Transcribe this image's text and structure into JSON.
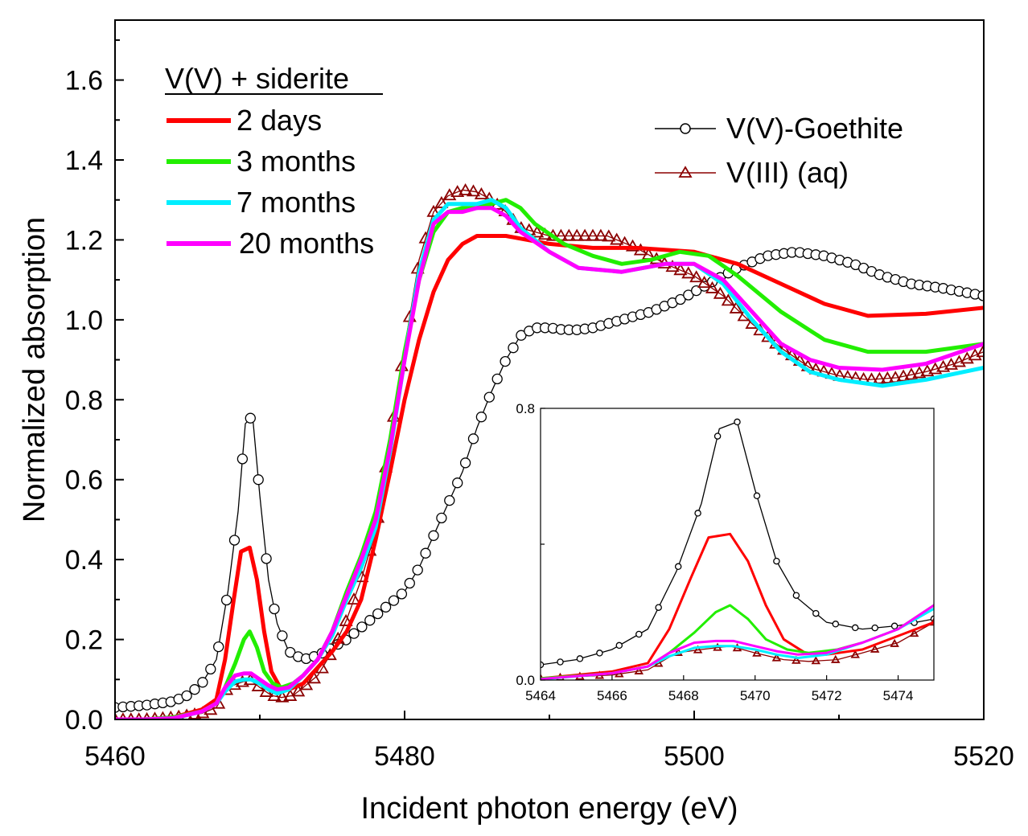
{
  "chart_data": {
    "type": "line",
    "title": "",
    "xlabel": "Incident photon energy (eV)",
    "ylabel": "Normalized absorption",
    "xlim": [
      5460,
      5520
    ],
    "ylim": [
      0,
      1.75
    ],
    "xticks": [
      "5460",
      "5480",
      "5500",
      "5520"
    ],
    "yticks": [
      "0.0",
      "0.2",
      "0.4",
      "0.6",
      "0.8",
      "1.0",
      "1.2",
      "1.4",
      "1.6"
    ],
    "legend_left_title": "V(V) + siderite",
    "series": [
      {
        "name": "2 days",
        "color": "#ff0000",
        "style": "solid",
        "points": [
          [
            5460,
            0.0
          ],
          [
            5462,
            0.0
          ],
          [
            5464,
            0.005
          ],
          [
            5466,
            0.025
          ],
          [
            5467,
            0.05
          ],
          [
            5467.6,
            0.15
          ],
          [
            5468.2,
            0.3
          ],
          [
            5468.7,
            0.42
          ],
          [
            5469.3,
            0.43
          ],
          [
            5469.8,
            0.35
          ],
          [
            5470.3,
            0.22
          ],
          [
            5470.8,
            0.12
          ],
          [
            5471.4,
            0.08
          ],
          [
            5472,
            0.075
          ],
          [
            5473,
            0.09
          ],
          [
            5474,
            0.13
          ],
          [
            5475,
            0.17
          ],
          [
            5476,
            0.22
          ],
          [
            5477,
            0.3
          ],
          [
            5478,
            0.45
          ],
          [
            5479,
            0.62
          ],
          [
            5480,
            0.8
          ],
          [
            5481,
            0.95
          ],
          [
            5482,
            1.07
          ],
          [
            5483,
            1.15
          ],
          [
            5484,
            1.19
          ],
          [
            5485,
            1.21
          ],
          [
            5487,
            1.21
          ],
          [
            5490,
            1.19
          ],
          [
            5493,
            1.18
          ],
          [
            5496,
            1.18
          ],
          [
            5500,
            1.17
          ],
          [
            5503,
            1.14
          ],
          [
            5506,
            1.09
          ],
          [
            5509,
            1.04
          ],
          [
            5512,
            1.01
          ],
          [
            5516,
            1.015
          ],
          [
            5520,
            1.03
          ]
        ]
      },
      {
        "name": "3 months",
        "color": "#22ee00",
        "style": "solid",
        "points": [
          [
            5460,
            0.0
          ],
          [
            5462,
            0.0
          ],
          [
            5464,
            0.005
          ],
          [
            5466,
            0.02
          ],
          [
            5467,
            0.04
          ],
          [
            5467.6,
            0.08
          ],
          [
            5468.3,
            0.14
          ],
          [
            5468.9,
            0.2
          ],
          [
            5469.3,
            0.22
          ],
          [
            5469.8,
            0.18
          ],
          [
            5470.3,
            0.12
          ],
          [
            5470.9,
            0.09
          ],
          [
            5471.5,
            0.08
          ],
          [
            5472.3,
            0.09
          ],
          [
            5473,
            0.11
          ],
          [
            5474,
            0.15
          ],
          [
            5475,
            0.22
          ],
          [
            5476,
            0.32
          ],
          [
            5477,
            0.41
          ],
          [
            5478,
            0.52
          ],
          [
            5479,
            0.7
          ],
          [
            5480,
            0.92
          ],
          [
            5481,
            1.1
          ],
          [
            5482,
            1.22
          ],
          [
            5483,
            1.27
          ],
          [
            5484,
            1.28
          ],
          [
            5485,
            1.28
          ],
          [
            5486,
            1.29
          ],
          [
            5487,
            1.3
          ],
          [
            5488,
            1.28
          ],
          [
            5489,
            1.24
          ],
          [
            5491,
            1.19
          ],
          [
            5493,
            1.16
          ],
          [
            5495,
            1.14
          ],
          [
            5497,
            1.15
          ],
          [
            5499,
            1.17
          ],
          [
            5501,
            1.16
          ],
          [
            5503,
            1.11
          ],
          [
            5506,
            1.02
          ],
          [
            5509,
            0.95
          ],
          [
            5512,
            0.92
          ],
          [
            5516,
            0.92
          ],
          [
            5520,
            0.94
          ]
        ]
      },
      {
        "name": "7 months",
        "color": "#00eeff",
        "style": "solid",
        "points": [
          [
            5460,
            0.0
          ],
          [
            5462,
            0.0
          ],
          [
            5464,
            0.002
          ],
          [
            5466,
            0.02
          ],
          [
            5467,
            0.04
          ],
          [
            5467.6,
            0.07
          ],
          [
            5468.3,
            0.095
          ],
          [
            5468.9,
            0.1
          ],
          [
            5469.4,
            0.1
          ],
          [
            5470,
            0.09
          ],
          [
            5470.6,
            0.075
          ],
          [
            5471.2,
            0.065
          ],
          [
            5472,
            0.075
          ],
          [
            5473,
            0.11
          ],
          [
            5474,
            0.15
          ],
          [
            5475,
            0.21
          ],
          [
            5476,
            0.3
          ],
          [
            5477,
            0.38
          ],
          [
            5478,
            0.48
          ],
          [
            5479,
            0.67
          ],
          [
            5480,
            0.9
          ],
          [
            5481,
            1.12
          ],
          [
            5482,
            1.25
          ],
          [
            5483,
            1.29
          ],
          [
            5484,
            1.29
          ],
          [
            5485,
            1.29
          ],
          [
            5486,
            1.3
          ],
          [
            5487,
            1.28
          ],
          [
            5488,
            1.23
          ],
          [
            5490,
            1.17
          ],
          [
            5492,
            1.13
          ],
          [
            5495,
            1.12
          ],
          [
            5498,
            1.14
          ],
          [
            5500,
            1.14
          ],
          [
            5502,
            1.09
          ],
          [
            5504,
            1.0
          ],
          [
            5506,
            0.92
          ],
          [
            5508,
            0.87
          ],
          [
            5510,
            0.85
          ],
          [
            5513,
            0.835
          ],
          [
            5516,
            0.85
          ],
          [
            5520,
            0.88
          ]
        ]
      },
      {
        "name": "20 months",
        "color": "#ff00ff",
        "style": "solid",
        "points": [
          [
            5460,
            0.0
          ],
          [
            5462,
            0.0
          ],
          [
            5464,
            0.003
          ],
          [
            5466,
            0.02
          ],
          [
            5467,
            0.04
          ],
          [
            5467.6,
            0.08
          ],
          [
            5468.3,
            0.11
          ],
          [
            5468.9,
            0.115
          ],
          [
            5469.4,
            0.115
          ],
          [
            5470,
            0.1
          ],
          [
            5470.6,
            0.085
          ],
          [
            5471.2,
            0.075
          ],
          [
            5472,
            0.08
          ],
          [
            5473,
            0.11
          ],
          [
            5474,
            0.15
          ],
          [
            5475,
            0.22
          ],
          [
            5476,
            0.31
          ],
          [
            5477,
            0.4
          ],
          [
            5478,
            0.5
          ],
          [
            5479,
            0.68
          ],
          [
            5480,
            0.9
          ],
          [
            5481,
            1.1
          ],
          [
            5482,
            1.24
          ],
          [
            5483,
            1.27
          ],
          [
            5484,
            1.27
          ],
          [
            5485,
            1.28
          ],
          [
            5486,
            1.28
          ],
          [
            5487,
            1.26
          ],
          [
            5488,
            1.22
          ],
          [
            5490,
            1.17
          ],
          [
            5492,
            1.13
          ],
          [
            5495,
            1.12
          ],
          [
            5498,
            1.14
          ],
          [
            5500,
            1.14
          ],
          [
            5502,
            1.1
          ],
          [
            5504,
            1.02
          ],
          [
            5506,
            0.94
          ],
          [
            5508,
            0.9
          ],
          [
            5510,
            0.88
          ],
          [
            5513,
            0.875
          ],
          [
            5516,
            0.89
          ],
          [
            5520,
            0.94
          ]
        ]
      },
      {
        "name": "V(V)-Goethite",
        "color": "#000000",
        "style": "circle",
        "points": [
          [
            5460,
            0.03
          ],
          [
            5462,
            0.035
          ],
          [
            5464,
            0.045
          ],
          [
            5465,
            0.06
          ],
          [
            5466,
            0.09
          ],
          [
            5467,
            0.15
          ],
          [
            5467.8,
            0.32
          ],
          [
            5468.5,
            0.52
          ],
          [
            5469,
            0.74
          ],
          [
            5469.5,
            0.76
          ],
          [
            5470,
            0.56
          ],
          [
            5470.6,
            0.35
          ],
          [
            5471.2,
            0.24
          ],
          [
            5472,
            0.17
          ],
          [
            5473,
            0.15
          ],
          [
            5474,
            0.16
          ],
          [
            5475,
            0.18
          ],
          [
            5476,
            0.2
          ],
          [
            5477,
            0.23
          ],
          [
            5478,
            0.26
          ],
          [
            5479,
            0.29
          ],
          [
            5480,
            0.32
          ],
          [
            5481,
            0.38
          ],
          [
            5482,
            0.46
          ],
          [
            5483,
            0.54
          ],
          [
            5484,
            0.62
          ],
          [
            5485,
            0.73
          ],
          [
            5486,
            0.82
          ],
          [
            5487,
            0.9
          ],
          [
            5488,
            0.96
          ],
          [
            5489,
            0.98
          ],
          [
            5490,
            0.98
          ],
          [
            5491,
            0.975
          ],
          [
            5492,
            0.975
          ],
          [
            5493,
            0.98
          ],
          [
            5494,
            0.99
          ],
          [
            5495,
            1.0
          ],
          [
            5497,
            1.02
          ],
          [
            5499,
            1.05
          ],
          [
            5501,
            1.09
          ],
          [
            5503,
            1.13
          ],
          [
            5505,
            1.16
          ],
          [
            5507,
            1.17
          ],
          [
            5509,
            1.16
          ],
          [
            5511,
            1.14
          ],
          [
            5513,
            1.11
          ],
          [
            5515,
            1.09
          ],
          [
            5517,
            1.08
          ],
          [
            5520,
            1.06
          ]
        ]
      },
      {
        "name": "V(III) (aq)",
        "color": "#8b0000",
        "style": "triangle",
        "points": [
          [
            5460,
            0.0
          ],
          [
            5462,
            0.0
          ],
          [
            5464,
            0.005
          ],
          [
            5466,
            0.015
          ],
          [
            5467,
            0.03
          ],
          [
            5467.8,
            0.08
          ],
          [
            5468.5,
            0.09
          ],
          [
            5469.3,
            0.1
          ],
          [
            5470,
            0.08
          ],
          [
            5470.8,
            0.06
          ],
          [
            5471.5,
            0.055
          ],
          [
            5472.3,
            0.06
          ],
          [
            5473,
            0.08
          ],
          [
            5474,
            0.11
          ],
          [
            5475,
            0.17
          ],
          [
            5476,
            0.25
          ],
          [
            5477,
            0.35
          ],
          [
            5478,
            0.47
          ],
          [
            5479,
            0.7
          ],
          [
            5480,
            0.93
          ],
          [
            5481,
            1.15
          ],
          [
            5482,
            1.27
          ],
          [
            5483,
            1.31
          ],
          [
            5484,
            1.325
          ],
          [
            5485,
            1.32
          ],
          [
            5486,
            1.3
          ],
          [
            5487,
            1.27
          ],
          [
            5488,
            1.23
          ],
          [
            5490,
            1.21
          ],
          [
            5492,
            1.21
          ],
          [
            5494,
            1.21
          ],
          [
            5496,
            1.18
          ],
          [
            5498,
            1.14
          ],
          [
            5500,
            1.11
          ],
          [
            5502,
            1.06
          ],
          [
            5504,
            0.99
          ],
          [
            5506,
            0.93
          ],
          [
            5508,
            0.88
          ],
          [
            5510,
            0.86
          ],
          [
            5512,
            0.85
          ],
          [
            5514,
            0.855
          ],
          [
            5516,
            0.87
          ],
          [
            5518,
            0.89
          ],
          [
            5520,
            0.92
          ]
        ]
      }
    ],
    "inset": {
      "xlim": [
        5464,
        5475
      ],
      "ylim": [
        0,
        0.8
      ],
      "xticks": [
        "5464",
        "5466",
        "5468",
        "5470",
        "5472",
        "5474"
      ],
      "yticks": [
        "0.0",
        "0.8"
      ]
    }
  }
}
